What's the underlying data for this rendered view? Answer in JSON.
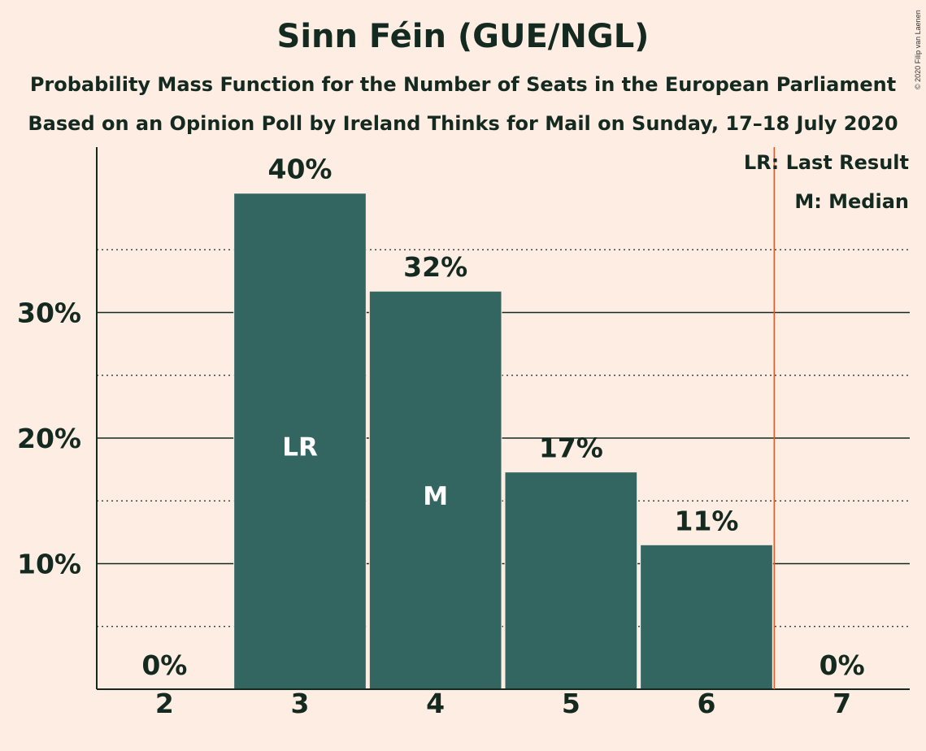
{
  "title": "Sinn Féin (GUE/NGL)",
  "subtitle_1": "Probability Mass Function for the Number of Seats in the European Parliament",
  "subtitle_2": "Based on an Opinion Poll by Ireland Thinks for Mail on Sunday, 17–18 July 2020",
  "copyright": "© 2020 Filip van Laenen",
  "legend": {
    "last_result": "LR: Last Result",
    "median": "M: Median"
  },
  "colors": {
    "background": "#FDEDE2",
    "bar": "#336660",
    "last_result_line": "#E55A2B",
    "text": "#142A21"
  },
  "chart_data": {
    "type": "bar",
    "title": "Sinn Féin (GUE/NGL)",
    "xlabel": "",
    "ylabel": "",
    "categories": [
      "2",
      "3",
      "4",
      "5",
      "6",
      "7"
    ],
    "values": [
      0,
      39.5,
      31.7,
      17.3,
      11.5,
      0
    ],
    "value_labels": [
      "0%",
      "40%",
      "32%",
      "17%",
      "11%",
      "0%"
    ],
    "bar_markers": [
      "",
      "LR",
      "M",
      "",
      "",
      ""
    ],
    "ylim": [
      0,
      43
    ],
    "y_ticks": [
      10,
      20,
      30
    ],
    "y_tick_labels": [
      "10%",
      "20%",
      "30%"
    ],
    "y_minor_ticks": [
      5,
      15,
      25,
      35
    ],
    "last_result_after": "6",
    "grid": true
  }
}
